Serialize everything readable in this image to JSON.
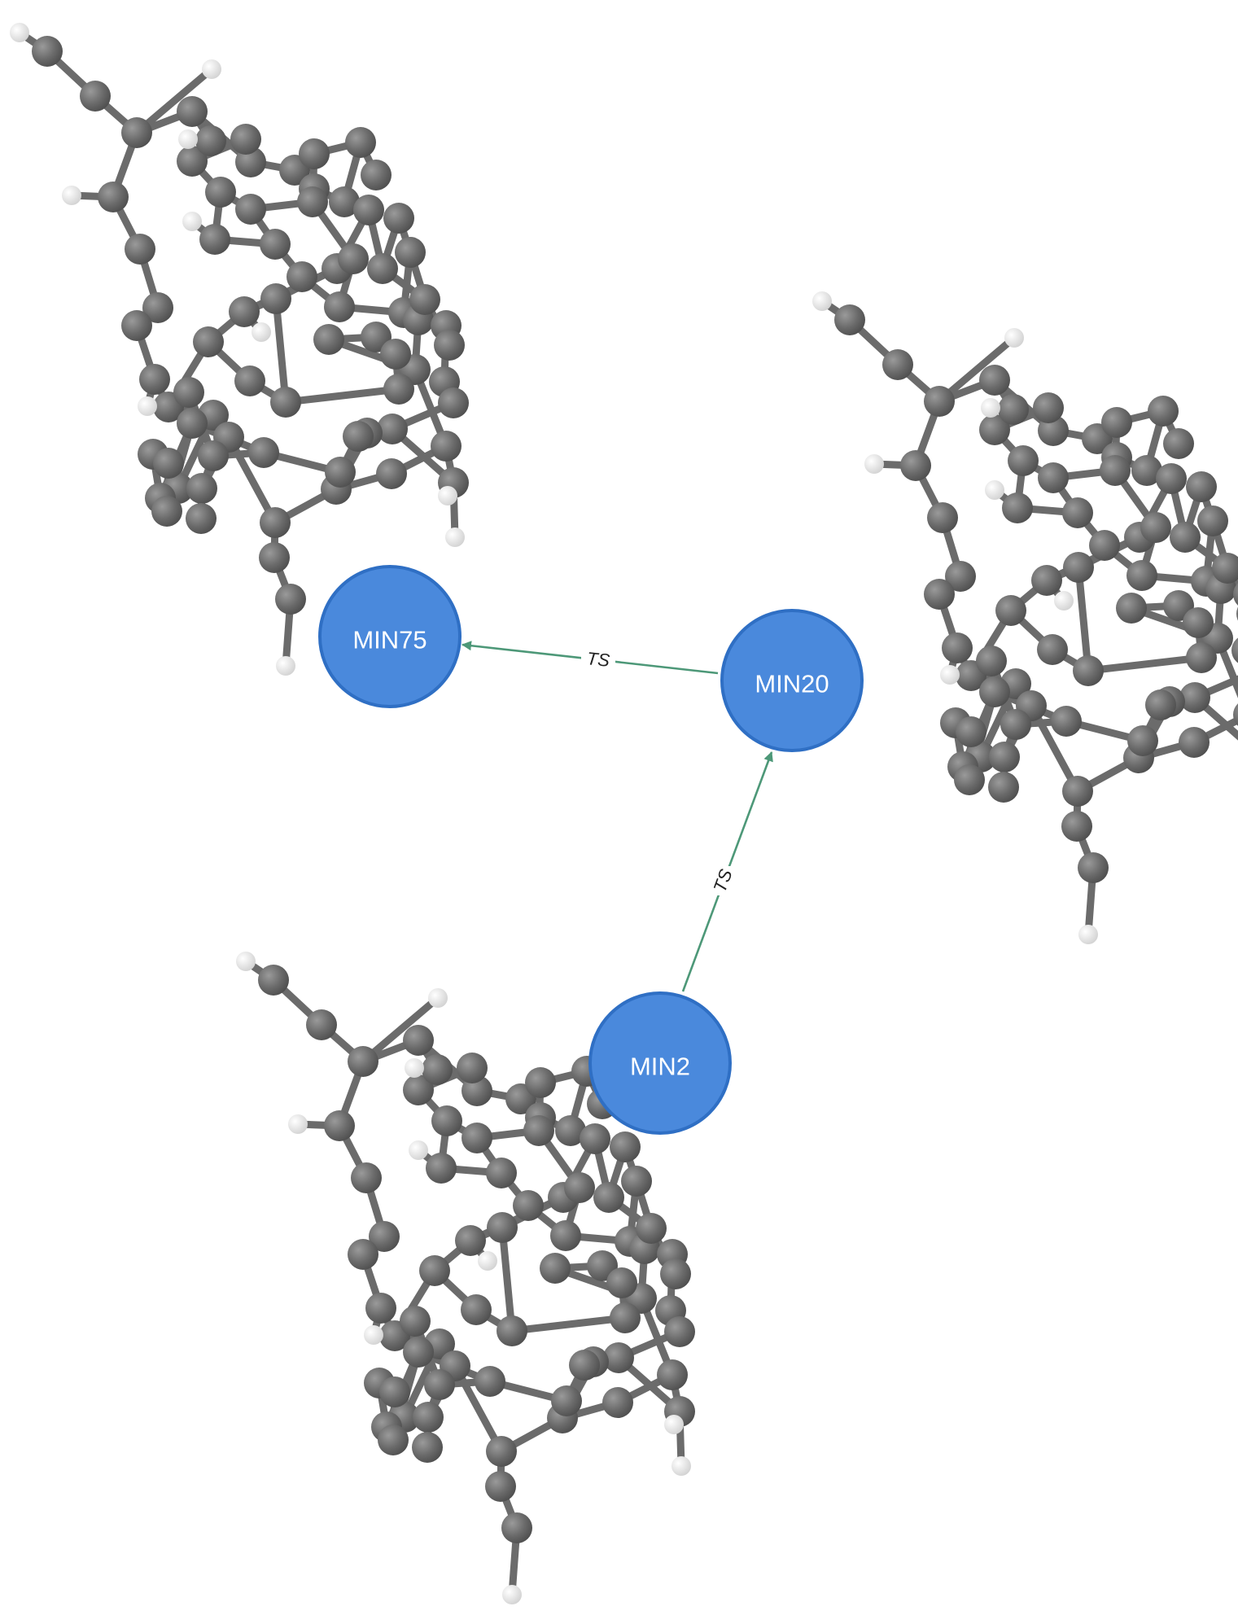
{
  "nodes": [
    {
      "id": "MIN75",
      "label": "MIN75"
    },
    {
      "id": "MIN20",
      "label": "MIN20"
    },
    {
      "id": "MIN2",
      "label": "MIN2"
    }
  ],
  "edges": [
    {
      "from": "MIN20",
      "to": "MIN75",
      "label": "TS"
    },
    {
      "from": "MIN2",
      "to": "MIN20",
      "label": "TS"
    }
  ],
  "colors": {
    "node_fill": "#4a89dc",
    "node_stroke": "#2f6fc4",
    "edge": "#4d9878",
    "carbon_atom": "#666666",
    "hydrogen_atom": "#f2f2f2"
  },
  "structures": [
    {
      "name": "molecule-structure-min75",
      "element_types": [
        "C",
        "H"
      ]
    },
    {
      "name": "molecule-structure-min20",
      "element_types": [
        "C",
        "H"
      ]
    },
    {
      "name": "molecule-structure-min2",
      "element_types": [
        "C",
        "H"
      ]
    }
  ]
}
